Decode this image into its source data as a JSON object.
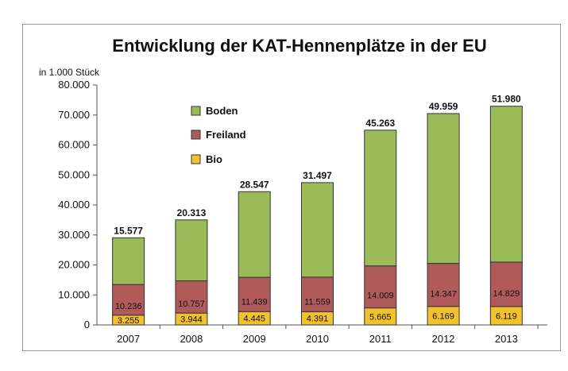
{
  "chart_data": {
    "type": "bar",
    "stacked": true,
    "title": "Entwicklung der KAT-Hennenplätze in der EU",
    "unit_label": "in 1.000 Stück",
    "categories": [
      "2007",
      "2008",
      "2009",
      "2010",
      "2011",
      "2012",
      "2013"
    ],
    "y_tick_labels": [
      "0",
      "10.000",
      "20.000",
      "30.000",
      "40.000",
      "50.000",
      "60.000",
      "70.000",
      "80.000"
    ],
    "ylim": [
      0,
      80000
    ],
    "series": [
      {
        "name": "Bio",
        "color": "#f2c12e",
        "values": [
          3255,
          3944,
          4445,
          4391,
          5665,
          6169,
          6119
        ],
        "labels": [
          "3.255",
          "3.944",
          "4.445",
          "4.391",
          "5.665",
          "6.169",
          "6.119"
        ]
      },
      {
        "name": "Freiland",
        "color": "#b05a5a",
        "values": [
          10236,
          10757,
          11439,
          11559,
          14009,
          14347,
          14829
        ],
        "labels": [
          "10.236",
          "10.757",
          "11.439",
          "11.559",
          "14.009",
          "14.347",
          "14.829"
        ]
      },
      {
        "name": "Boden",
        "color": "#9bbb59",
        "values": [
          15577,
          20313,
          28547,
          31497,
          45263,
          49959,
          51980
        ],
        "labels": [
          "15.577",
          "20.313",
          "28.547",
          "31.497",
          "45.263",
          "49.959",
          "51.980"
        ]
      }
    ],
    "legend_order": [
      "Boden",
      "Freiland",
      "Bio"
    ],
    "legend_position": "top-left",
    "grid": false
  }
}
